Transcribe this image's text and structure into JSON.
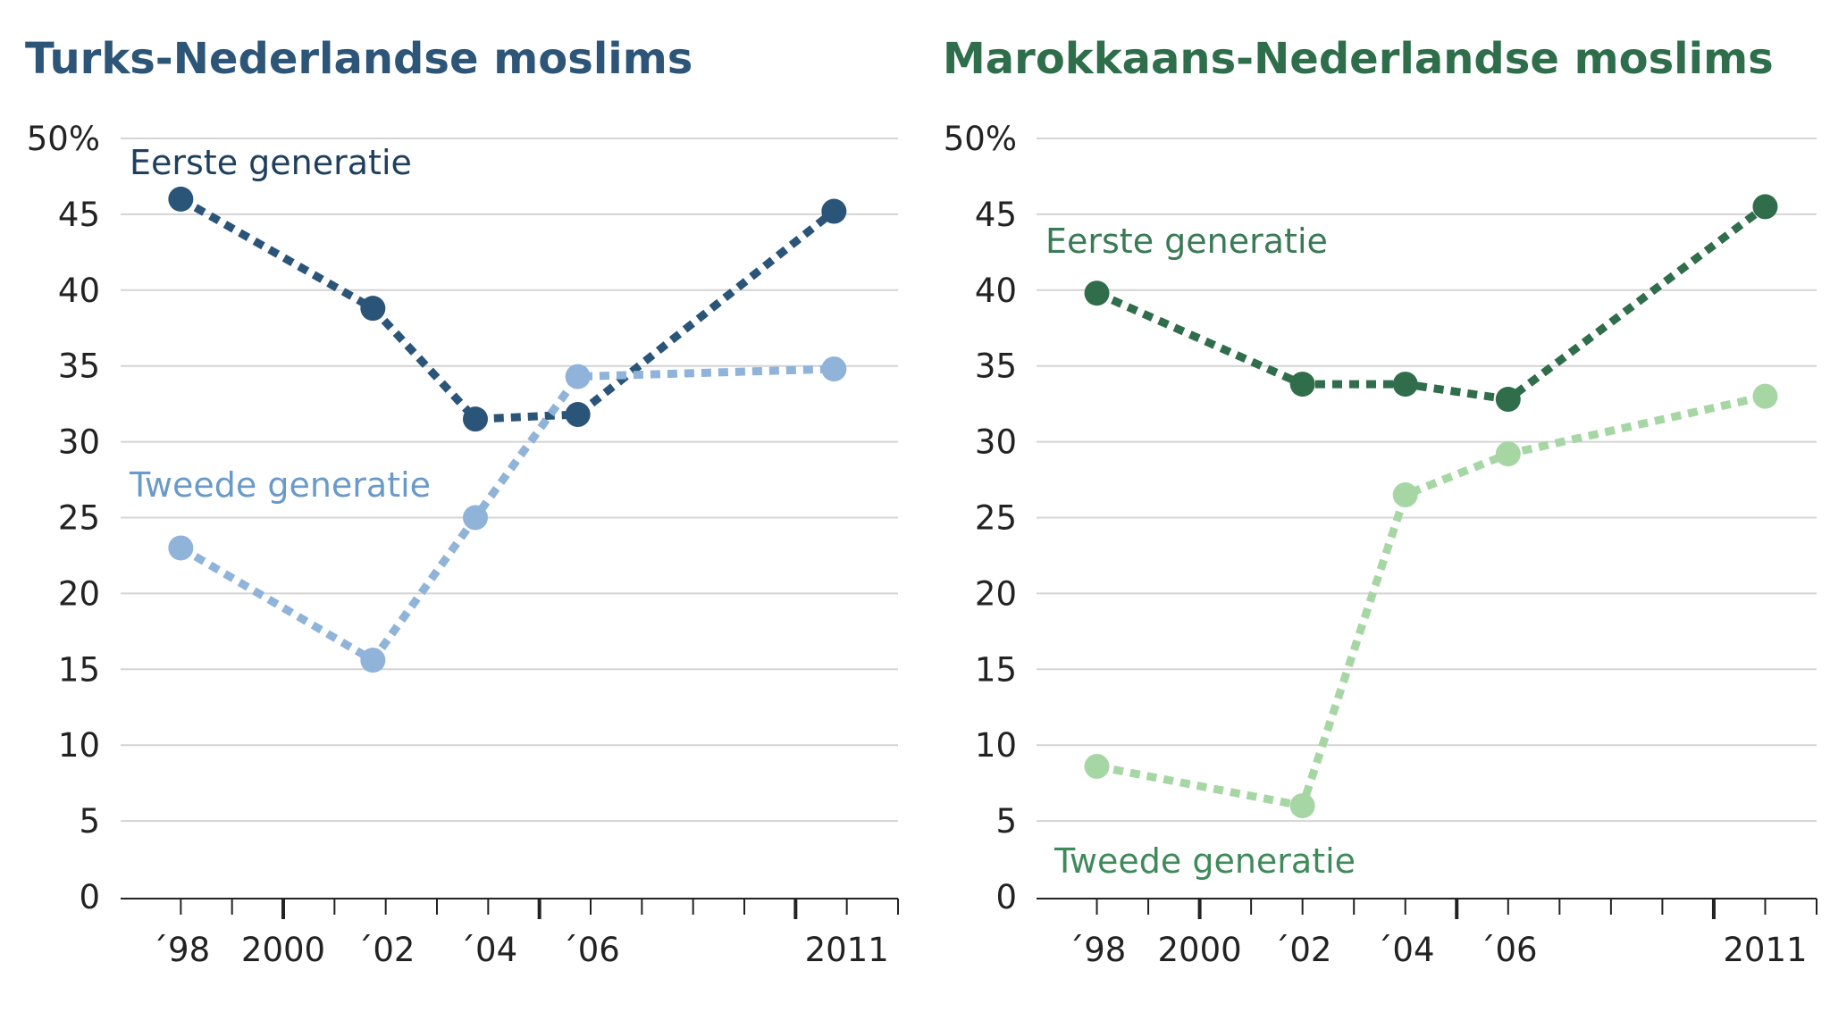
{
  "chart_data": [
    {
      "type": "line",
      "title": "Turks-Nederlandse moslims",
      "title_color": "#2d5577",
      "y_ticks": [
        0,
        5,
        10,
        15,
        20,
        25,
        30,
        35,
        40,
        45,
        50
      ],
      "y_tick_labels": [
        "0",
        "5",
        "10",
        "15",
        "20",
        "25",
        "30",
        "35",
        "40",
        "45",
        "50%"
      ],
      "ylim": [
        0,
        50
      ],
      "xlim": [
        1997,
        2012
      ],
      "x_tick_positions": [
        1998,
        2000,
        2002,
        2004,
        2006,
        2011
      ],
      "x_tick_labels": [
        "´98",
        "2000",
        "´02",
        "´04",
        "´06",
        "2011"
      ],
      "series": [
        {
          "name": "Eerste generatie",
          "color": "#2a5478",
          "label_color": "#1f3f5e",
          "x": [
            1998,
            2001.75,
            2003.75,
            2005.75,
            2010.75
          ],
          "values": [
            46,
            38.8,
            31.5,
            31.8,
            45.2
          ]
        },
        {
          "name": "Tweede generatie",
          "color": "#8fb3d9",
          "label_color": "#6a9ac8",
          "x": [
            1998,
            2001.75,
            2003.75,
            2005.75,
            2010.75
          ],
          "values": [
            23,
            15.6,
            25,
            34.3,
            34.8
          ]
        }
      ]
    },
    {
      "type": "line",
      "title": "Marokkaans-Nederlandse moslims",
      "title_color": "#2e6e4b",
      "y_ticks": [
        0,
        5,
        10,
        15,
        20,
        25,
        30,
        35,
        40,
        45,
        50
      ],
      "y_tick_labels": [
        "0",
        "5",
        "10",
        "15",
        "20",
        "25",
        "30",
        "35",
        "40",
        "45",
        "50%"
      ],
      "ylim": [
        0,
        50
      ],
      "xlim": [
        1997,
        2012
      ],
      "x_tick_positions": [
        1998,
        2000,
        2002,
        2004,
        2006,
        2011
      ],
      "x_tick_labels": [
        "´98",
        "2000",
        "´02",
        "´04",
        "´06",
        "2011"
      ],
      "series": [
        {
          "name": "Eerste generatie",
          "color": "#2f6d4b",
          "label_color": "#3a7a55",
          "x": [
            1998,
            2002,
            2004,
            2006,
            2011
          ],
          "values": [
            39.8,
            33.8,
            33.8,
            32.8,
            45.5
          ]
        },
        {
          "name": "Tweede generatie",
          "color": "#a7d6a5",
          "label_color": "#3f8a5a",
          "x": [
            1998,
            2002,
            2004,
            2006,
            2011
          ],
          "values": [
            8.6,
            6,
            26.5,
            29.2,
            33
          ]
        }
      ]
    }
  ]
}
